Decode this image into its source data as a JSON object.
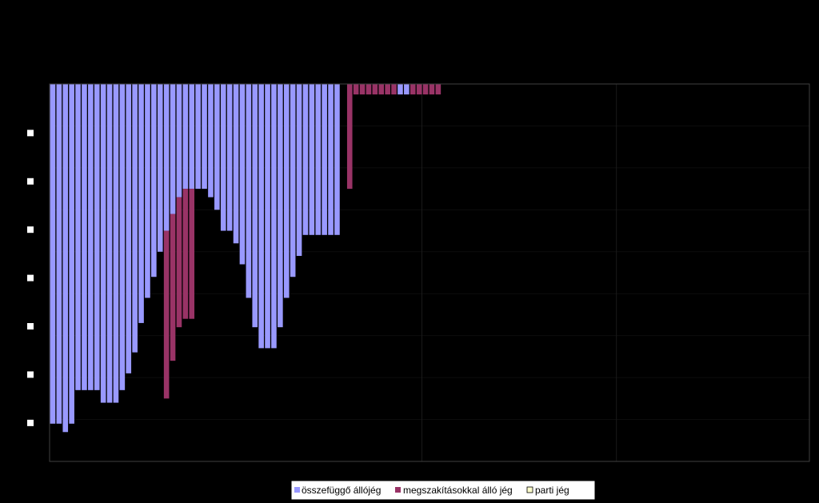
{
  "chart_data": {
    "type": "bar",
    "orientation": "downward-from-top",
    "title": "",
    "xlabel": "",
    "ylabel": "",
    "ylim": [
      0,
      9
    ],
    "y_gridlines": 9,
    "x_bands": 3,
    "series": [
      {
        "name": "összefüggő állójég",
        "color": "#9999FF",
        "values": [
          8.1,
          8.1,
          8.3,
          8.1,
          7.3,
          7.3,
          7.3,
          7.3,
          7.6,
          7.6,
          7.6,
          7.3,
          6.9,
          6.4,
          5.7,
          5.1,
          4.6,
          4.0,
          3.5,
          3.1,
          2.7,
          2.5,
          2.5,
          2.5,
          2.5,
          2.7,
          3.0,
          3.5,
          3.5,
          3.8,
          4.3,
          5.1,
          5.8,
          6.3,
          6.3,
          6.3,
          5.8,
          5.1,
          4.6,
          4.1,
          3.6,
          3.6,
          3.6,
          3.6,
          3.6,
          3.6,
          0,
          0,
          0,
          0,
          0,
          0,
          0,
          0,
          0,
          0,
          0,
          0,
          0,
          0,
          0,
          0
        ]
      },
      {
        "name": "megszakításokkal álló jég",
        "color": "#993366",
        "values": [
          0,
          0,
          0,
          0,
          0,
          0,
          0,
          0,
          0,
          0,
          0,
          0,
          0,
          0,
          0,
          0,
          0,
          0,
          4.0,
          3.5,
          3.1,
          3.1,
          3.1,
          0,
          0,
          0,
          0,
          0,
          0,
          0,
          0,
          0,
          0,
          0,
          0,
          0,
          0,
          0,
          0,
          0,
          0,
          0,
          0,
          0,
          0,
          0,
          0,
          2.5,
          0.25,
          0.25,
          0.25,
          0.25,
          0.25,
          0.25,
          0.25,
          0,
          0,
          0.25,
          0.25,
          0.25,
          0.25,
          0.25
        ]
      },
      {
        "name": "parti jég",
        "color": "#FFFFCC",
        "values": [
          0,
          0,
          0,
          0,
          0,
          0,
          0,
          0,
          0,
          0,
          0,
          0,
          0,
          0,
          0,
          0,
          0,
          0,
          0,
          0,
          0,
          0,
          0,
          0,
          0,
          0,
          0,
          0,
          0,
          0,
          0,
          0,
          0,
          0,
          0,
          0,
          0,
          0,
          0,
          0,
          0,
          0,
          0,
          0,
          0,
          0,
          0,
          0,
          0,
          0,
          0,
          0,
          0,
          0,
          0,
          0,
          0,
          0,
          0,
          0,
          0,
          0
        ]
      }
    ],
    "overlay_series": {
      "color": "#9999FF",
      "values": [
        0,
        0,
        0,
        0,
        0,
        0,
        0,
        0,
        0,
        0,
        0,
        0,
        0,
        0,
        0,
        0,
        0,
        0,
        0,
        0,
        0,
        0,
        0,
        0,
        0,
        0,
        0,
        0,
        0,
        0,
        0,
        0,
        0,
        0,
        0,
        0,
        0,
        0,
        0,
        0,
        0,
        0,
        0,
        0,
        0,
        0,
        0,
        0,
        0,
        0,
        0,
        0,
        0,
        0,
        0,
        0.25,
        0.25,
        0,
        0,
        0,
        0,
        0
      ]
    },
    "legend": {
      "placement": "bottom",
      "entries": [
        "összefüggő állójég",
        "megszakításokkal álló jég",
        "parti jég"
      ]
    },
    "grid": true,
    "plot_background": "#000000",
    "axis_color": "#404040",
    "legend_background": "#FFFFFF"
  }
}
